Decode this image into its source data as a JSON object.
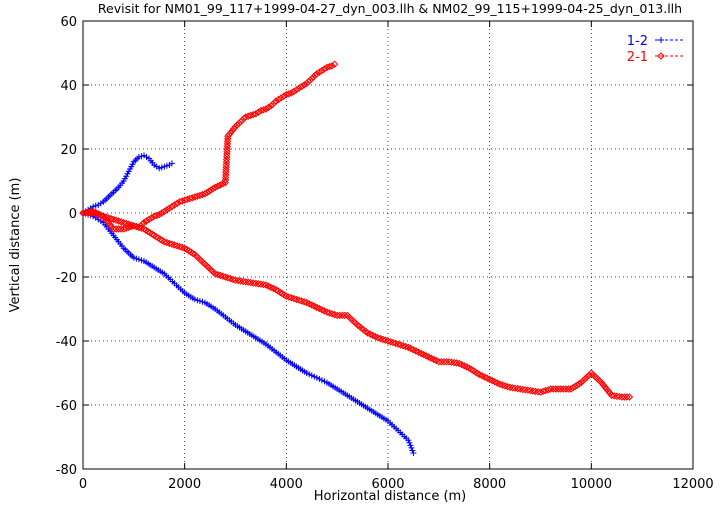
{
  "chart_data": {
    "type": "scatter",
    "title": "Revisit for NM01_99_117+1999-04-27_dyn_003.llh & NM02_99_115+1999-04-25_dyn_013.llh",
    "xlabel": "Horizontal distance (m)",
    "ylabel": "Vertical distance (m)",
    "xlim": [
      0,
      12000
    ],
    "ylim": [
      -80,
      60
    ],
    "x_ticks": [
      0,
      2000,
      4000,
      6000,
      8000,
      10000,
      12000
    ],
    "y_ticks": [
      -80,
      -60,
      -40,
      -20,
      0,
      20,
      40,
      60
    ],
    "grid": true,
    "legend_position": "top-right",
    "series": [
      {
        "name": "1-2",
        "color": "#0000ff",
        "marker": "plus",
        "line": "dashed",
        "branches": [
          {
            "x": [
              0,
              100,
              200,
              300,
              400,
              500,
              600,
              700,
              800,
              900,
              1000,
              1100,
              1200,
              1300,
              1400,
              1500,
              1600,
              1700,
              1750
            ],
            "y": [
              0,
              1,
              2,
              2.5,
              3.5,
              5,
              6.5,
              8,
              10,
              13,
              16,
              17.5,
              18,
              17,
              15,
              14,
              14.5,
              15,
              15.5
            ]
          },
          {
            "x": [
              0,
              100,
              200,
              300,
              400,
              500,
              600,
              700,
              800,
              900,
              1000,
              1200,
              1400,
              1600,
              1800,
              2000,
              2200,
              2400,
              2600,
              2800,
              3000,
              3200,
              3400,
              3600,
              3800,
              4000,
              4200,
              4400,
              4600,
              4800,
              5000,
              5200,
              5400,
              5600,
              5800,
              6000,
              6200,
              6400,
              6500
            ],
            "y": [
              0,
              -0.5,
              -1,
              -2,
              -3,
              -5,
              -7,
              -9,
              -11,
              -12.5,
              -14,
              -15,
              -17,
              -19,
              -22,
              -25,
              -27,
              -28,
              -30,
              -32.5,
              -35,
              -37,
              -39,
              -41,
              -43.5,
              -46,
              -48,
              -50,
              -51.5,
              -53,
              -55,
              -57,
              -59,
              -61,
              -63,
              -65,
              -68,
              -71,
              -75
            ]
          }
        ]
      },
      {
        "name": "2-1",
        "color": "#ff0000",
        "marker": "diamond",
        "line": "dashed",
        "branches": [
          {
            "x": [
              0,
              200,
              400,
              500,
              600,
              700,
              800,
              900,
              1000,
              1100,
              1200,
              1300,
              1400,
              1500,
              1600,
              1700,
              1800,
              1900,
              2000,
              2200,
              2400,
              2600,
              2800,
              2850,
              2900,
              3000,
              3100,
              3200,
              3300,
              3400,
              3500,
              3600,
              3700,
              3800,
              3900,
              4000,
              4100,
              4200,
              4300,
              4400,
              4500,
              4600,
              4700,
              4800,
              4900,
              4950
            ],
            "y": [
              0,
              0.5,
              -1,
              -3,
              -5,
              -5,
              -5,
              -4.5,
              -4,
              -4.5,
              -3,
              -2,
              -1,
              -0.5,
              0.5,
              1.5,
              2.5,
              3.5,
              4,
              5,
              6,
              8,
              9.5,
              24,
              25,
              27,
              28.5,
              30,
              30.5,
              31,
              32,
              32.5,
              33.5,
              35,
              36,
              37,
              37.5,
              38.5,
              39.5,
              40.5,
              42,
              43.5,
              44.5,
              45.5,
              46,
              46.5
            ]
          },
          {
            "x": [
              0,
              200,
              400,
              600,
              800,
              1000,
              1200,
              1400,
              1600,
              1800,
              2000,
              2200,
              2400,
              2600,
              2800,
              3000,
              3200,
              3400,
              3600,
              3800,
              4000,
              4200,
              4400,
              4600,
              4800,
              5000,
              5200,
              5400,
              5600,
              5800,
              6000,
              6200,
              6400,
              6600,
              6800,
              7000,
              7200,
              7400,
              7600,
              7800,
              8000,
              8200,
              8400,
              8600,
              8800,
              9000,
              9200,
              9400,
              9600,
              9800,
              10000,
              10200,
              10400,
              10600,
              10750
            ],
            "y": [
              0,
              0,
              -1,
              -2,
              -3,
              -4,
              -5,
              -7,
              -9,
              -10,
              -11,
              -13,
              -16,
              -19,
              -20,
              -21,
              -21.5,
              -22,
              -22.5,
              -24,
              -26,
              -27,
              -28,
              -29.5,
              -31,
              -32,
              -32,
              -35,
              -37.5,
              -39,
              -40,
              -41,
              -42,
              -43.5,
              -45,
              -46.5,
              -46.5,
              -47,
              -48.5,
              -50.5,
              -52,
              -53.5,
              -54.5,
              -55,
              -55.5,
              -56,
              -55,
              -55,
              -55,
              -53,
              -50,
              -53,
              -57,
              -57.5,
              -57.5
            ]
          }
        ]
      }
    ]
  }
}
